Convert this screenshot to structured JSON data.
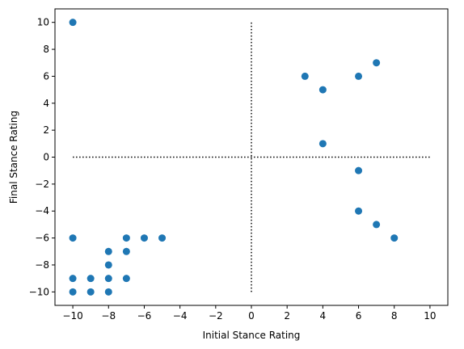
{
  "chart_data": {
    "type": "scatter",
    "title": "",
    "xlabel": "Initial Stance Rating",
    "ylabel": "Final Stance Rating",
    "xlim": [
      -11,
      11
    ],
    "ylim": [
      -11,
      11
    ],
    "xticks": [
      -10,
      -8,
      -6,
      -4,
      -2,
      0,
      2,
      4,
      6,
      8,
      10
    ],
    "yticks": [
      -10,
      -8,
      -6,
      -4,
      -2,
      0,
      2,
      4,
      6,
      8,
      10
    ],
    "grid": false,
    "marker_color": "#1f77b4",
    "series": [
      {
        "points": [
          {
            "x": -10,
            "y": 10
          },
          {
            "x": -10,
            "y": -6
          },
          {
            "x": -10,
            "y": -9
          },
          {
            "x": -10,
            "y": -10
          },
          {
            "x": -9,
            "y": -9
          },
          {
            "x": -9,
            "y": -10
          },
          {
            "x": -8,
            "y": -7
          },
          {
            "x": -8,
            "y": -8
          },
          {
            "x": -8,
            "y": -9
          },
          {
            "x": -8,
            "y": -10
          },
          {
            "x": -7,
            "y": -6
          },
          {
            "x": -7,
            "y": -7
          },
          {
            "x": -7,
            "y": -9
          },
          {
            "x": -6,
            "y": -6
          },
          {
            "x": -5,
            "y": -6
          },
          {
            "x": 3,
            "y": 6
          },
          {
            "x": 4,
            "y": 5
          },
          {
            "x": 4,
            "y": 1
          },
          {
            "x": 6,
            "y": 6
          },
          {
            "x": 6,
            "y": -1
          },
          {
            "x": 6,
            "y": -4
          },
          {
            "x": 7,
            "y": 7
          },
          {
            "x": 7,
            "y": -5
          },
          {
            "x": 8,
            "y": -6
          }
        ]
      }
    ],
    "reference_lines": [
      {
        "orientation": "horizontal",
        "value": 0,
        "from": -10,
        "to": 10,
        "style": "dotted",
        "color": "#000000"
      },
      {
        "orientation": "vertical",
        "value": 0,
        "from": -10,
        "to": 10,
        "style": "dotted",
        "color": "#000000"
      }
    ]
  }
}
